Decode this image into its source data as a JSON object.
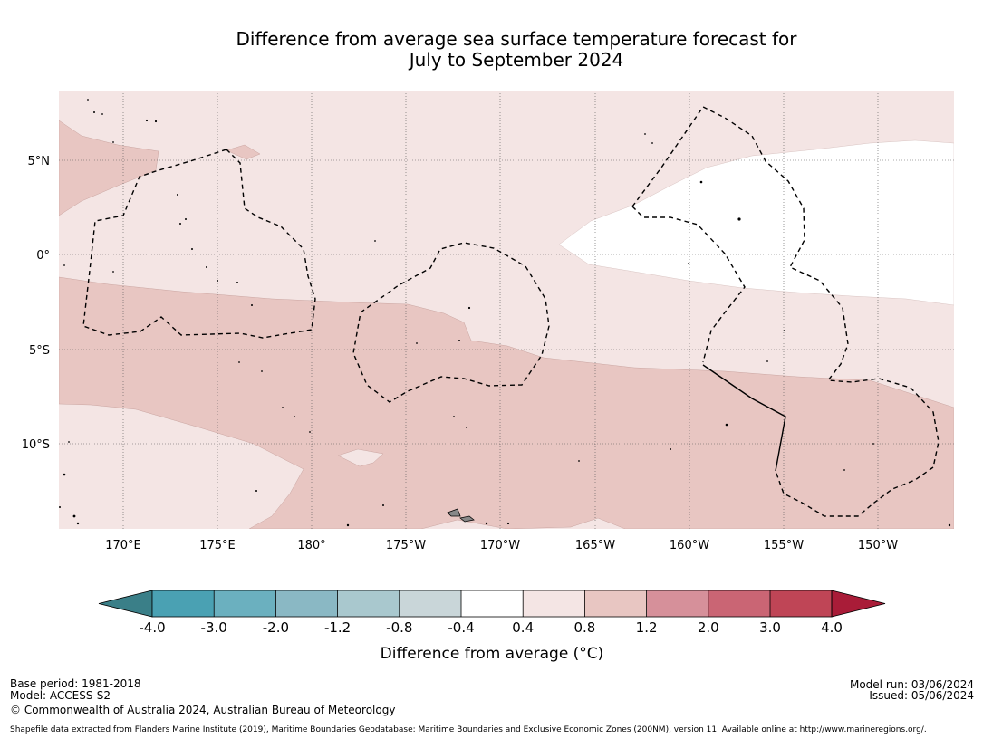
{
  "title": {
    "line1": "Difference from average sea surface temperature forecast for",
    "line2": "July to September 2024"
  },
  "map": {
    "lon_ticks": [
      "170°E",
      "175°E",
      "180°",
      "175°W",
      "170°W",
      "165°W",
      "160°W",
      "155°W",
      "150°W"
    ],
    "lat_ticks": [
      "5°N",
      "0°",
      "5°S",
      "10°S"
    ],
    "lon_range_deg_east": [
      166.4,
      213.8
    ],
    "lat_range": [
      9.0,
      -14.3
    ],
    "region_colors": {
      "band_0_4_to_0_8": "#f4e5e4",
      "band_0_8_to_1_2": "#e8c6c2",
      "band_neutral": "#ffffff"
    }
  },
  "colorbar": {
    "tick_labels": [
      "-4.0",
      "-3.0",
      "-2.0",
      "-1.2",
      "-0.8",
      "-0.4",
      "0.4",
      "0.8",
      "1.2",
      "2.0",
      "3.0",
      "4.0"
    ],
    "colors": [
      "#3a7f88",
      "#4aa1b3",
      "#6bb0bf",
      "#8ab8c4",
      "#a9c8ce",
      "#c9d6d9",
      "#ffffff",
      "#f4e5e4",
      "#e8c6c2",
      "#d6909a",
      "#ca6574",
      "#bf4556",
      "#a91c38"
    ],
    "label": "Difference from average (°C)"
  },
  "footer": {
    "base_period": "Base period: 1981-2018",
    "model": "Model: ACCESS-S2",
    "copyright": "© Commonwealth of Australia 2024, Australian Bureau of Meteorology",
    "model_run": "Model run: 03/06/2024",
    "issued": "Issued: 05/06/2024",
    "shapefile": "Shapefile data extracted from Flanders Marine Institute (2019), Maritime Boundaries Geodatabase: Maritime Boundaries and Exclusive Economic Zones (200NM), version 11. Available online at http://www.marineregions.org/."
  }
}
